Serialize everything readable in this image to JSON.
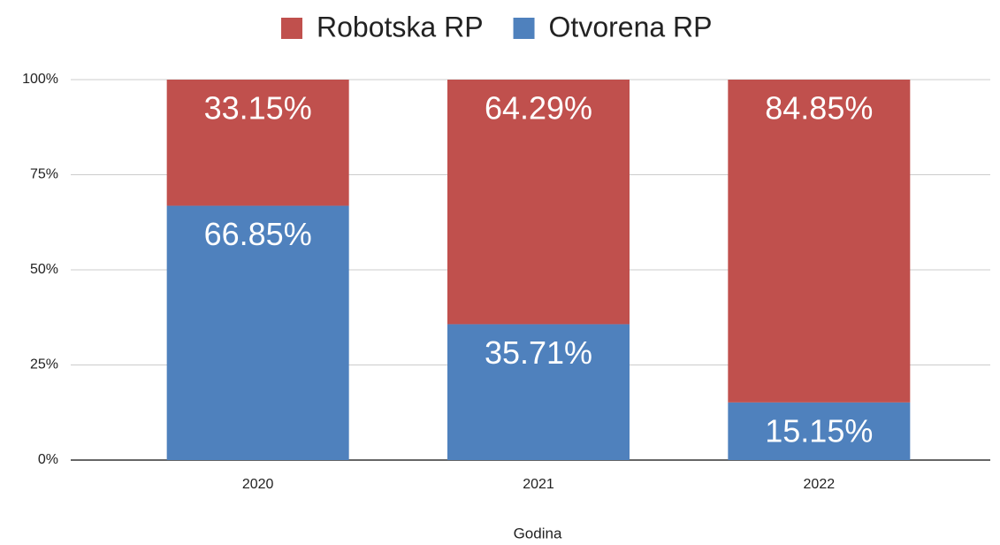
{
  "chart_data": {
    "type": "stacked_bar",
    "categories": [
      "2020",
      "2021",
      "2022"
    ],
    "series": [
      {
        "name": "Robotska RP",
        "color": "#c0504d",
        "values": [
          33.15,
          64.29,
          84.85
        ],
        "value_labels": [
          "33.15%",
          "64.29%",
          "84.85%"
        ]
      },
      {
        "name": "Otvorena RP",
        "color": "#4f81bd",
        "values": [
          66.85,
          35.71,
          15.15
        ],
        "value_labels": [
          "66.85%",
          "35.71%",
          "15.15%"
        ]
      }
    ],
    "xlabel": "Godina",
    "ylim": [
      0,
      100
    ],
    "yticks": [
      {
        "value": 0,
        "label": "0%"
      },
      {
        "value": 25,
        "label": "25%"
      },
      {
        "value": 50,
        "label": "50%"
      },
      {
        "value": 75,
        "label": "75%"
      },
      {
        "value": 100,
        "label": "100%"
      }
    ],
    "grid": true,
    "legend": "top"
  }
}
